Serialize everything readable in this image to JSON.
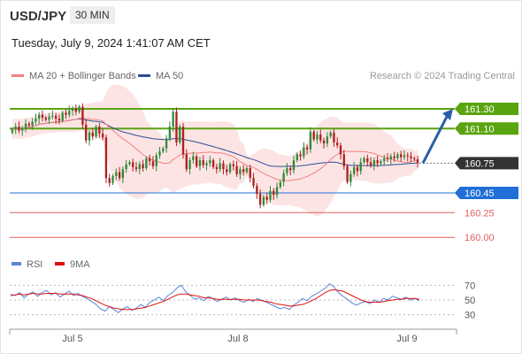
{
  "header": {
    "symbol": "USD/JPY",
    "timeframe": "30 MIN",
    "datetime": "Tuesday, July 9, 2024 1:41:07 AM CET",
    "credit": "Research © 2024 Trading Central"
  },
  "legend": {
    "ma20_label": "MA 20 + Bollinger Bands",
    "ma50_label": "MA 50",
    "rsi_label": "RSI",
    "ma9_label": "9MA"
  },
  "colors": {
    "bull": "#2e8b3a",
    "bear": "#b02020",
    "ma20": "#f08080",
    "ma50": "#2c4f94",
    "bands": "#fde4e4",
    "green_level": "#5aa40f",
    "blue_level": "#1f6fd6",
    "red_level": "#e06060",
    "current": "#333333",
    "arrow": "#2a5fa8",
    "rsi": "#5b86d8",
    "rsi_ma": "#e01010"
  },
  "chart_data": [
    {
      "type": "candlestick",
      "title": "",
      "ylim": [
        159.85,
        161.55
      ],
      "x_tick_labels": [
        "Jul 5",
        "Jul 8",
        "Jul 9"
      ],
      "levels": [
        {
          "label": "161.30",
          "value": 161.3,
          "kind": "resistance",
          "color": "green"
        },
        {
          "label": "161.10",
          "value": 161.1,
          "kind": "resistance",
          "color": "green"
        },
        {
          "label": "160.75",
          "value": 160.75,
          "kind": "current",
          "color": "dark"
        },
        {
          "label": "160.45",
          "value": 160.45,
          "kind": "support",
          "color": "blue"
        },
        {
          "label": "160.25",
          "value": 160.25,
          "kind": "support",
          "color": "red"
        },
        {
          "label": "160.00",
          "value": 160.0,
          "kind": "support",
          "color": "red"
        }
      ],
      "forecast_arrow": {
        "from": 160.75,
        "to": 161.3
      },
      "candles_close": [
        161.09,
        161.12,
        161.08,
        161.1,
        161.15,
        161.13,
        161.17,
        161.2,
        161.24,
        161.21,
        161.19,
        161.22,
        161.23,
        161.2,
        161.18,
        161.26,
        161.24,
        161.28,
        161.3,
        161.27,
        161.32,
        161.14,
        160.98,
        161.06,
        161.02,
        161.12,
        161.05,
        161.01,
        160.6,
        160.55,
        160.62,
        160.66,
        160.6,
        160.69,
        160.74,
        160.76,
        160.71,
        160.69,
        160.74,
        160.7,
        160.8,
        160.77,
        160.72,
        160.83,
        160.87,
        160.9,
        161.0,
        161.12,
        161.27,
        160.96,
        161.12,
        160.84,
        160.69,
        160.78,
        160.82,
        160.72,
        160.78,
        160.73,
        160.75,
        160.78,
        160.71,
        160.69,
        160.75,
        160.69,
        160.66,
        160.74,
        160.72,
        160.64,
        160.69,
        160.66,
        160.7,
        160.6,
        160.52,
        160.44,
        160.33,
        160.41,
        160.38,
        160.47,
        160.43,
        160.51,
        160.56,
        160.65,
        160.7,
        160.68,
        160.78,
        160.84,
        160.82,
        160.91,
        160.89,
        161.07,
        160.99,
        161.04,
        160.98,
        160.95,
        161.02,
        161.06,
        160.96,
        160.93,
        160.84,
        160.72,
        160.56,
        160.64,
        160.71,
        160.67,
        160.76,
        160.8,
        160.76,
        160.73,
        160.78,
        160.75,
        160.77,
        160.8,
        160.79,
        160.82,
        160.8,
        160.84,
        160.81,
        160.83,
        160.82,
        160.8,
        160.79,
        160.75
      ]
    },
    {
      "type": "line",
      "title": "",
      "ylim": [
        20,
        80
      ],
      "y_ticks": [
        70,
        50,
        30
      ],
      "series": [
        {
          "name": "RSI",
          "values": [
            58,
            56,
            60,
            53,
            58,
            61,
            55,
            60,
            63,
            57,
            60,
            54,
            58,
            62,
            56,
            59,
            55,
            52,
            48,
            44,
            38,
            35,
            41,
            37,
            33,
            38,
            41,
            36,
            39,
            44,
            40,
            47,
            50,
            54,
            49,
            56,
            60,
            66,
            70,
            61,
            56,
            51,
            53,
            49,
            55,
            52,
            48,
            51,
            54,
            50,
            53,
            49,
            47,
            51,
            48,
            52,
            49,
            47,
            44,
            41,
            38,
            40,
            37,
            43,
            47,
            52,
            49,
            55,
            58,
            62,
            66,
            72,
            68,
            60,
            55,
            51,
            46,
            43,
            46,
            48,
            45,
            50,
            47,
            52,
            50,
            55,
            53,
            51,
            54,
            50,
            52,
            49
          ]
        },
        {
          "name": "9MA",
          "values": [
            56,
            57,
            58,
            57,
            58,
            59,
            58,
            58,
            59,
            59,
            59,
            58,
            58,
            58,
            58,
            57,
            56,
            54,
            52,
            49,
            46,
            43,
            41,
            39,
            38,
            37,
            37,
            37,
            38,
            39,
            40,
            42,
            44,
            46,
            48,
            51,
            54,
            57,
            58,
            58,
            57,
            56,
            55,
            53,
            53,
            52,
            51,
            51,
            51,
            51,
            51,
            51,
            50,
            50,
            50,
            50,
            49,
            48,
            47,
            45,
            44,
            43,
            42,
            42,
            43,
            44,
            46,
            49,
            52,
            56,
            60,
            63,
            64,
            63,
            62,
            59,
            56,
            53,
            50,
            48,
            47,
            47,
            47,
            48,
            49,
            50,
            51,
            51,
            52,
            52,
            52,
            51
          ]
        }
      ]
    }
  ]
}
